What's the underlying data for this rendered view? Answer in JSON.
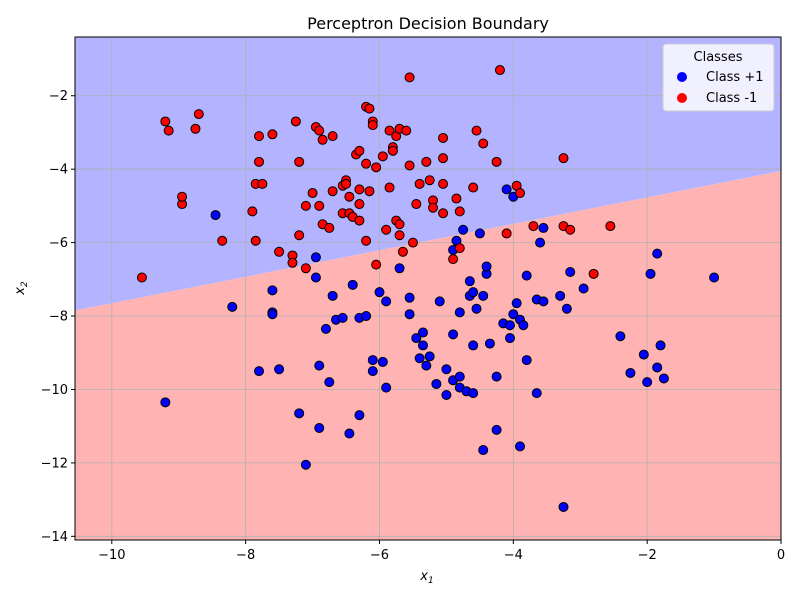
{
  "chart_data": {
    "type": "scatter",
    "title": "Perceptron Decision Boundary",
    "xlabel": "x",
    "xlabel_sub": "1",
    "ylabel": "x",
    "ylabel_sub": "2",
    "xlim": [
      -10.55,
      0
    ],
    "ylim": [
      -14.1,
      -0.4
    ],
    "x_ticks": [
      -10,
      -8,
      -6,
      -4,
      -2,
      0
    ],
    "x_tick_labels": [
      "−10",
      "−8",
      "−6",
      "−4",
      "−2",
      "0"
    ],
    "y_ticks": [
      -14,
      -12,
      -10,
      -8,
      -6,
      -4,
      -2
    ],
    "y_tick_labels": [
      "−14",
      "−12",
      "−10",
      "−8",
      "−6",
      "−4",
      "−2"
    ],
    "grid": true,
    "decision_boundary": {
      "x": [
        -10.55,
        0
      ],
      "y": [
        -7.85,
        -4.05
      ],
      "region_above_color": "#b3b3ff",
      "region_below_color": "#ffb3b3"
    },
    "legend": {
      "title": "Classes",
      "placement": "top-right",
      "entries": [
        {
          "label": "Class +1",
          "color": "#0000ff"
        },
        {
          "label": "Class -1",
          "color": "#ff0000"
        }
      ]
    },
    "series": [
      {
        "name": "Class +1",
        "color": "#0000ff",
        "points": [
          [
            -9.2,
            -10.35
          ],
          [
            -8.45,
            -5.25
          ],
          [
            -8.2,
            -7.75
          ],
          [
            -7.8,
            -9.5
          ],
          [
            -7.6,
            -7.3
          ],
          [
            -7.6,
            -7.9
          ],
          [
            -7.6,
            -7.95
          ],
          [
            -7.5,
            -9.45
          ],
          [
            -7.2,
            -10.65
          ],
          [
            -7.1,
            -12.05
          ],
          [
            -6.95,
            -6.4
          ],
          [
            -6.95,
            -6.95
          ],
          [
            -6.9,
            -9.35
          ],
          [
            -6.9,
            -11.05
          ],
          [
            -6.8,
            -8.35
          ],
          [
            -6.75,
            -9.8
          ],
          [
            -6.7,
            -7.45
          ],
          [
            -6.65,
            -8.1
          ],
          [
            -6.55,
            -8.05
          ],
          [
            -6.45,
            -11.2
          ],
          [
            -6.4,
            -7.15
          ],
          [
            -6.3,
            -8.05
          ],
          [
            -6.3,
            -10.7
          ],
          [
            -6.2,
            -8.0
          ],
          [
            -6.1,
            -9.2
          ],
          [
            -6.1,
            -9.5
          ],
          [
            -6.0,
            -7.35
          ],
          [
            -5.95,
            -9.25
          ],
          [
            -5.9,
            -7.6
          ],
          [
            -5.9,
            -9.95
          ],
          [
            -5.7,
            -6.7
          ],
          [
            -5.55,
            -7.5
          ],
          [
            -5.55,
            -7.95
          ],
          [
            -5.45,
            -8.6
          ],
          [
            -5.4,
            -9.15
          ],
          [
            -5.35,
            -8.45
          ],
          [
            -5.35,
            -8.8
          ],
          [
            -5.3,
            -9.35
          ],
          [
            -5.25,
            -9.1
          ],
          [
            -5.15,
            -9.85
          ],
          [
            -5.1,
            -7.6
          ],
          [
            -5.0,
            -9.45
          ],
          [
            -5.0,
            -10.15
          ],
          [
            -4.9,
            -6.2
          ],
          [
            -4.9,
            -8.5
          ],
          [
            -4.9,
            -9.75
          ],
          [
            -4.85,
            -5.95
          ],
          [
            -4.8,
            -7.9
          ],
          [
            -4.8,
            -9.95
          ],
          [
            -4.8,
            -9.65
          ],
          [
            -4.75,
            -5.65
          ],
          [
            -4.7,
            -10.05
          ],
          [
            -4.65,
            -7.05
          ],
          [
            -4.65,
            -7.45
          ],
          [
            -4.6,
            -7.35
          ],
          [
            -4.6,
            -8.8
          ],
          [
            -4.6,
            -10.1
          ],
          [
            -4.55,
            -7.8
          ],
          [
            -4.5,
            -5.75
          ],
          [
            -4.45,
            -7.45
          ],
          [
            -4.45,
            -11.65
          ],
          [
            -4.4,
            -6.85
          ],
          [
            -4.4,
            -6.65
          ],
          [
            -4.35,
            -8.75
          ],
          [
            -4.25,
            -9.65
          ],
          [
            -4.25,
            -11.1
          ],
          [
            -4.15,
            -8.2
          ],
          [
            -4.1,
            -4.55
          ],
          [
            -4.05,
            -8.25
          ],
          [
            -4.05,
            -8.6
          ],
          [
            -4.0,
            -7.95
          ],
          [
            -4.0,
            -4.75
          ],
          [
            -3.95,
            -7.65
          ],
          [
            -3.9,
            -8.1
          ],
          [
            -3.9,
            -11.55
          ],
          [
            -3.85,
            -8.25
          ],
          [
            -3.8,
            -6.9
          ],
          [
            -3.8,
            -9.2
          ],
          [
            -3.65,
            -7.55
          ],
          [
            -3.65,
            -10.1
          ],
          [
            -3.6,
            -6.0
          ],
          [
            -3.55,
            -5.6
          ],
          [
            -3.55,
            -7.6
          ],
          [
            -3.3,
            -7.45
          ],
          [
            -3.25,
            -13.2
          ],
          [
            -3.2,
            -7.8
          ],
          [
            -3.15,
            -6.8
          ],
          [
            -2.95,
            -7.25
          ],
          [
            -2.4,
            -8.55
          ],
          [
            -2.25,
            -9.55
          ],
          [
            -2.05,
            -9.05
          ],
          [
            -2.0,
            -9.8
          ],
          [
            -1.95,
            -6.85
          ],
          [
            -1.85,
            -6.3
          ],
          [
            -1.85,
            -9.4
          ],
          [
            -1.8,
            -8.8
          ],
          [
            -1.75,
            -9.7
          ],
          [
            -1.0,
            -6.95
          ]
        ]
      },
      {
        "name": "Class -1",
        "color": "#ff0000",
        "points": [
          [
            -9.55,
            -6.95
          ],
          [
            -9.2,
            -2.7
          ],
          [
            -9.15,
            -2.95
          ],
          [
            -8.95,
            -4.95
          ],
          [
            -8.95,
            -4.75
          ],
          [
            -8.75,
            -2.9
          ],
          [
            -8.7,
            -2.5
          ],
          [
            -8.35,
            -5.95
          ],
          [
            -7.9,
            -5.15
          ],
          [
            -7.85,
            -5.95
          ],
          [
            -7.85,
            -4.4
          ],
          [
            -7.8,
            -3.1
          ],
          [
            -7.8,
            -3.8
          ],
          [
            -7.75,
            -4.4
          ],
          [
            -7.6,
            -3.05
          ],
          [
            -7.5,
            -6.25
          ],
          [
            -7.3,
            -6.35
          ],
          [
            -7.3,
            -6.55
          ],
          [
            -7.25,
            -2.7
          ],
          [
            -7.2,
            -3.8
          ],
          [
            -7.2,
            -5.8
          ],
          [
            -7.1,
            -5.0
          ],
          [
            -7.1,
            -6.7
          ],
          [
            -7.0,
            -4.65
          ],
          [
            -6.95,
            -2.85
          ],
          [
            -6.9,
            -2.95
          ],
          [
            -6.9,
            -5.0
          ],
          [
            -6.85,
            -3.2
          ],
          [
            -6.85,
            -5.5
          ],
          [
            -6.75,
            -5.6
          ],
          [
            -6.7,
            -3.1
          ],
          [
            -6.7,
            -4.6
          ],
          [
            -6.55,
            -4.45
          ],
          [
            -6.55,
            -5.2
          ],
          [
            -6.5,
            -4.3
          ],
          [
            -6.5,
            -4.4
          ],
          [
            -6.45,
            -4.75
          ],
          [
            -6.45,
            -5.2
          ],
          [
            -6.4,
            -5.3
          ],
          [
            -6.35,
            -3.6
          ],
          [
            -6.3,
            -3.5
          ],
          [
            -6.3,
            -4.55
          ],
          [
            -6.3,
            -4.95
          ],
          [
            -6.3,
            -5.4
          ],
          [
            -6.2,
            -2.3
          ],
          [
            -6.2,
            -3.85
          ],
          [
            -6.2,
            -5.95
          ],
          [
            -6.15,
            -4.6
          ],
          [
            -6.15,
            -2.35
          ],
          [
            -6.1,
            -2.7
          ],
          [
            -6.1,
            -2.8
          ],
          [
            -6.05,
            -3.95
          ],
          [
            -6.05,
            -6.6
          ],
          [
            -5.95,
            -3.65
          ],
          [
            -5.9,
            -5.65
          ],
          [
            -5.85,
            -2.95
          ],
          [
            -5.85,
            -4.5
          ],
          [
            -5.8,
            -3.4
          ],
          [
            -5.8,
            -3.5
          ],
          [
            -5.75,
            -3.1
          ],
          [
            -5.75,
            -5.4
          ],
          [
            -5.7,
            -2.9
          ],
          [
            -5.7,
            -5.5
          ],
          [
            -5.7,
            -5.8
          ],
          [
            -5.65,
            -6.25
          ],
          [
            -5.6,
            -2.95
          ],
          [
            -5.55,
            -1.5
          ],
          [
            -5.55,
            -3.9
          ],
          [
            -5.5,
            -6.0
          ],
          [
            -5.45,
            -4.95
          ],
          [
            -5.4,
            -4.4
          ],
          [
            -5.3,
            -3.8
          ],
          [
            -5.25,
            -4.3
          ],
          [
            -5.2,
            -4.85
          ],
          [
            -5.2,
            -5.05
          ],
          [
            -5.05,
            -3.15
          ],
          [
            -5.05,
            -3.7
          ],
          [
            -5.05,
            -4.4
          ],
          [
            -5.05,
            -5.2
          ],
          [
            -4.9,
            -6.45
          ],
          [
            -4.85,
            -4.8
          ],
          [
            -4.8,
            -5.15
          ],
          [
            -4.8,
            -6.15
          ],
          [
            -4.6,
            -4.5
          ],
          [
            -4.55,
            -2.95
          ],
          [
            -4.45,
            -3.3
          ],
          [
            -4.25,
            -3.8
          ],
          [
            -4.2,
            -1.3
          ],
          [
            -4.1,
            -5.75
          ],
          [
            -3.95,
            -4.45
          ],
          [
            -3.9,
            -4.65
          ],
          [
            -3.7,
            -5.55
          ],
          [
            -3.25,
            -5.55
          ],
          [
            -3.25,
            -3.7
          ],
          [
            -3.15,
            -5.65
          ],
          [
            -2.8,
            -6.85
          ],
          [
            -2.55,
            -5.55
          ]
        ]
      }
    ]
  }
}
